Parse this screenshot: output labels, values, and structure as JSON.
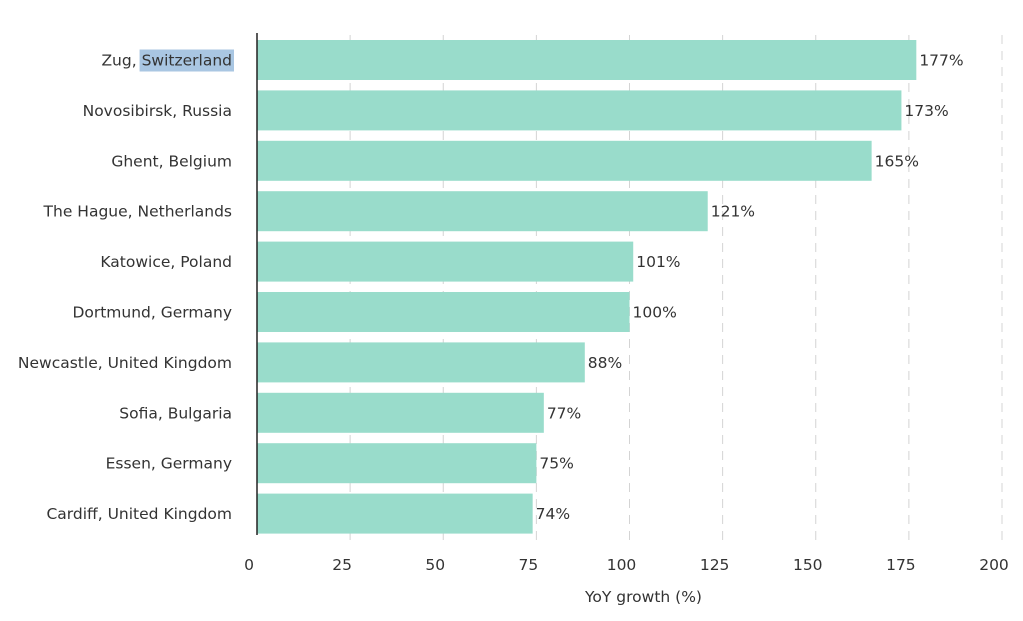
{
  "chart_data": {
    "type": "bar",
    "orientation": "horizontal",
    "categories": [
      "Zug, Switzerland",
      "Novosibirsk, Russia",
      "Ghent, Belgium",
      "The Hague, Netherlands",
      "Katowice, Poland",
      "Dortmund, Germany",
      "Newcastle, United Kingdom",
      "Sofia, Bulgaria",
      "Essen, Germany",
      "Cardiff, United Kingdom"
    ],
    "values": [
      177,
      173,
      165,
      121,
      101,
      100,
      88,
      77,
      75,
      74
    ],
    "value_labels": [
      "177%",
      "173%",
      "165%",
      "121%",
      "101%",
      "100%",
      "88%",
      "77%",
      "75%",
      "74%"
    ],
    "xlabel": "YoY growth (%)",
    "ylabel": "",
    "xlim": [
      0,
      200
    ],
    "xticks": [
      0,
      25,
      50,
      75,
      100,
      125,
      150,
      175,
      200
    ],
    "grid": "vertical dashed",
    "bar_color": "#99dccb",
    "highlighted_text": "Switzerland",
    "highlight_color": "#a9c6e2"
  }
}
